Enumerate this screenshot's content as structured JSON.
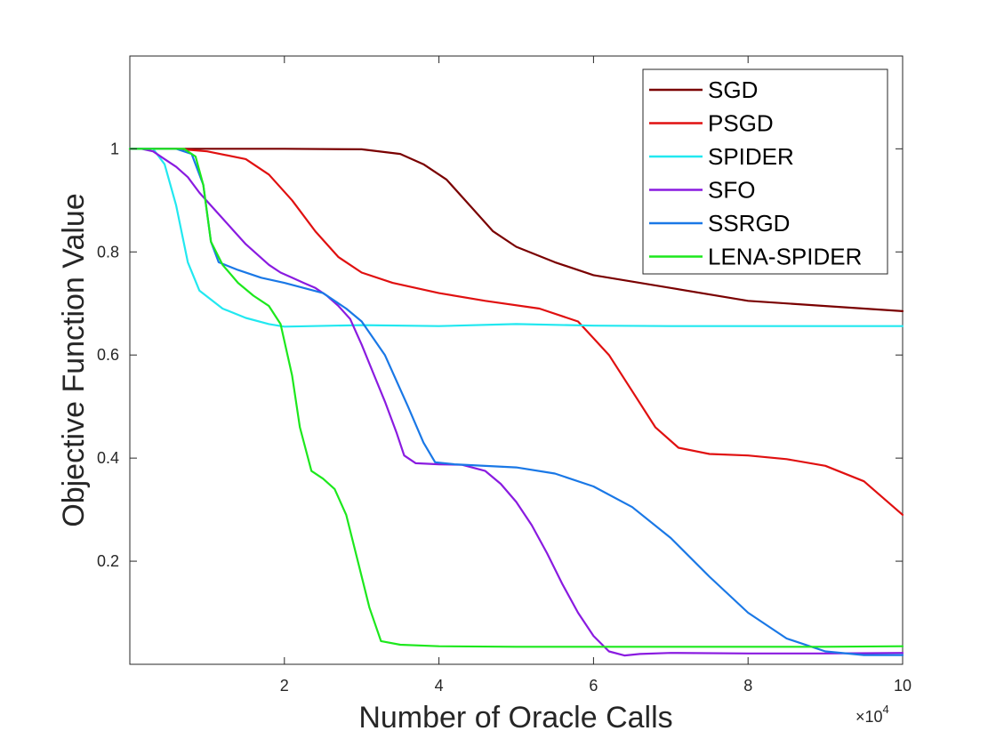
{
  "chart_data": {
    "type": "line",
    "title": "",
    "xlabel": "Number of Oracle Calls",
    "ylabel": "Objective Function Value",
    "x_exponent_base": "×10",
    "x_exponent_power": "4",
    "xlim": [
      0,
      10
    ],
    "ylim": [
      0,
      1.18
    ],
    "xticks": [
      2,
      4,
      6,
      8,
      10
    ],
    "xtick_labels": [
      "2",
      "4",
      "6",
      "8",
      "10"
    ],
    "yticks": [
      0.2,
      0.4,
      0.6,
      0.8,
      1
    ],
    "ytick_labels": [
      "0.2",
      "0.4",
      "0.6",
      "0.8",
      "1"
    ],
    "grid": false,
    "legend_position": "top-right",
    "series": [
      {
        "name": "SGD",
        "color": "#7a0000",
        "points": [
          [
            0,
            1
          ],
          [
            2,
            1
          ],
          [
            3,
            0.999
          ],
          [
            3.5,
            0.99
          ],
          [
            3.8,
            0.97
          ],
          [
            4.1,
            0.94
          ],
          [
            4.4,
            0.89
          ],
          [
            4.7,
            0.84
          ],
          [
            5,
            0.81
          ],
          [
            5.5,
            0.78
          ],
          [
            6,
            0.755
          ],
          [
            7,
            0.73
          ],
          [
            8,
            0.705
          ],
          [
            9,
            0.695
          ],
          [
            10,
            0.685
          ]
        ]
      },
      {
        "name": "PSGD",
        "color": "#e01010",
        "points": [
          [
            0,
            1
          ],
          [
            0.6,
            1
          ],
          [
            1,
            0.995
          ],
          [
            1.5,
            0.98
          ],
          [
            1.8,
            0.95
          ],
          [
            2.1,
            0.9
          ],
          [
            2.4,
            0.84
          ],
          [
            2.7,
            0.79
          ],
          [
            3,
            0.76
          ],
          [
            3.4,
            0.74
          ],
          [
            4,
            0.72
          ],
          [
            4.6,
            0.705
          ],
          [
            5.3,
            0.69
          ],
          [
            5.8,
            0.665
          ],
          [
            6.2,
            0.6
          ],
          [
            6.5,
            0.53
          ],
          [
            6.8,
            0.46
          ],
          [
            7.1,
            0.42
          ],
          [
            7.5,
            0.408
          ],
          [
            8,
            0.405
          ],
          [
            8.5,
            0.398
          ],
          [
            9,
            0.385
          ],
          [
            9.5,
            0.355
          ],
          [
            10,
            0.29
          ]
        ]
      },
      {
        "name": "SPIDER",
        "color": "#22e8f0",
        "points": [
          [
            0,
            1
          ],
          [
            0.3,
            1
          ],
          [
            0.45,
            0.97
          ],
          [
            0.6,
            0.89
          ],
          [
            0.75,
            0.78
          ],
          [
            0.9,
            0.725
          ],
          [
            1.2,
            0.69
          ],
          [
            1.5,
            0.672
          ],
          [
            1.8,
            0.66
          ],
          [
            2,
            0.655
          ],
          [
            3,
            0.658
          ],
          [
            4,
            0.656
          ],
          [
            5,
            0.66
          ],
          [
            6,
            0.657
          ],
          [
            7,
            0.656
          ],
          [
            8,
            0.656
          ],
          [
            9,
            0.656
          ],
          [
            10,
            0.656
          ]
        ]
      },
      {
        "name": "SFO",
        "color": "#8a1be0",
        "points": [
          [
            0,
            1
          ],
          [
            0.15,
            1
          ],
          [
            0.3,
            0.995
          ],
          [
            0.45,
            0.98
          ],
          [
            0.6,
            0.965
          ],
          [
            0.75,
            0.945
          ],
          [
            0.9,
            0.915
          ],
          [
            1.05,
            0.89
          ],
          [
            1.2,
            0.865
          ],
          [
            1.35,
            0.84
          ],
          [
            1.5,
            0.815
          ],
          [
            1.65,
            0.795
          ],
          [
            1.8,
            0.775
          ],
          [
            1.95,
            0.76
          ],
          [
            2.1,
            0.75
          ],
          [
            2.25,
            0.74
          ],
          [
            2.4,
            0.73
          ],
          [
            2.55,
            0.715
          ],
          [
            2.7,
            0.695
          ],
          [
            2.85,
            0.67
          ],
          [
            3,
            0.62
          ],
          [
            3.15,
            0.565
          ],
          [
            3.3,
            0.51
          ],
          [
            3.45,
            0.45
          ],
          [
            3.55,
            0.405
          ],
          [
            3.7,
            0.39
          ],
          [
            4,
            0.388
          ],
          [
            4.3,
            0.387
          ],
          [
            4.6,
            0.375
          ],
          [
            4.8,
            0.35
          ],
          [
            5,
            0.315
          ],
          [
            5.2,
            0.27
          ],
          [
            5.4,
            0.215
          ],
          [
            5.6,
            0.155
          ],
          [
            5.8,
            0.1
          ],
          [
            6,
            0.055
          ],
          [
            6.2,
            0.025
          ],
          [
            6.4,
            0.017
          ],
          [
            6.6,
            0.02
          ],
          [
            7,
            0.022
          ],
          [
            8,
            0.021
          ],
          [
            9,
            0.021
          ],
          [
            10,
            0.022
          ]
        ]
      },
      {
        "name": "SSRGD",
        "color": "#1a78e6",
        "points": [
          [
            0,
            1
          ],
          [
            0.6,
            1
          ],
          [
            0.8,
            0.99
          ],
          [
            0.95,
            0.93
          ],
          [
            1.05,
            0.82
          ],
          [
            1.15,
            0.78
          ],
          [
            1.4,
            0.765
          ],
          [
            1.7,
            0.75
          ],
          [
            2,
            0.74
          ],
          [
            2.5,
            0.72
          ],
          [
            2.8,
            0.69
          ],
          [
            3,
            0.665
          ],
          [
            3.3,
            0.6
          ],
          [
            3.6,
            0.5
          ],
          [
            3.8,
            0.43
          ],
          [
            3.95,
            0.392
          ],
          [
            4.2,
            0.388
          ],
          [
            5,
            0.382
          ],
          [
            5.5,
            0.37
          ],
          [
            6,
            0.345
          ],
          [
            6.5,
            0.305
          ],
          [
            7,
            0.245
          ],
          [
            7.5,
            0.17
          ],
          [
            8,
            0.1
          ],
          [
            8.5,
            0.05
          ],
          [
            9,
            0.025
          ],
          [
            9.5,
            0.018
          ],
          [
            10,
            0.018
          ]
        ]
      },
      {
        "name": "LENA-SPIDER",
        "color": "#1de81d",
        "points": [
          [
            0,
            1
          ],
          [
            0.7,
            1
          ],
          [
            0.85,
            0.985
          ],
          [
            0.95,
            0.93
          ],
          [
            1.05,
            0.82
          ],
          [
            1.2,
            0.775
          ],
          [
            1.4,
            0.74
          ],
          [
            1.6,
            0.715
          ],
          [
            1.8,
            0.695
          ],
          [
            1.95,
            0.66
          ],
          [
            2.1,
            0.56
          ],
          [
            2.2,
            0.46
          ],
          [
            2.35,
            0.375
          ],
          [
            2.5,
            0.36
          ],
          [
            2.65,
            0.34
          ],
          [
            2.8,
            0.29
          ],
          [
            2.95,
            0.2
          ],
          [
            3.1,
            0.11
          ],
          [
            3.25,
            0.045
          ],
          [
            3.5,
            0.038
          ],
          [
            4,
            0.035
          ],
          [
            5,
            0.034
          ],
          [
            6,
            0.034
          ],
          [
            7,
            0.034
          ],
          [
            8,
            0.034
          ],
          [
            9,
            0.034
          ],
          [
            10,
            0.035
          ]
        ]
      }
    ]
  }
}
